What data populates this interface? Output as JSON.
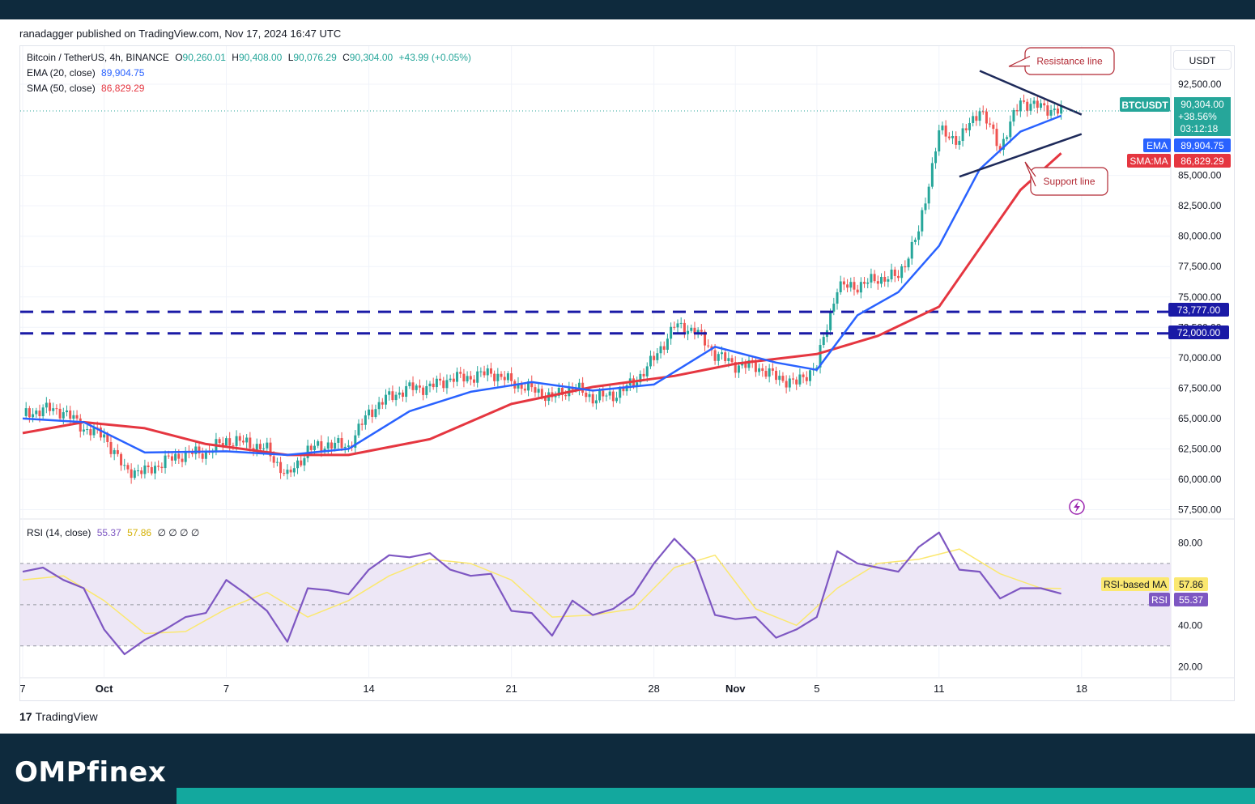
{
  "header": {
    "published": "ranadagger published on TradingView.com, Nov 17, 2024 16:47 UTC",
    "currency_button": "USDT",
    "tv_logo_text": "TradingView",
    "tv_logo_mark": "17"
  },
  "brand": "OMPfinex",
  "legend": {
    "symbol": "Bitcoin / TetherUS, 4h, BINANCE",
    "o_label": "O",
    "o": "90,260.01",
    "h_label": "H",
    "h": "90,408.00",
    "l_label": "L",
    "l": "90,076.29",
    "c_label": "C",
    "c": "90,304.00",
    "change": "+43.99 (+0.05%)",
    "ema_label": "EMA (20, close)",
    "ema_value": "89,904.75",
    "sma_label": "SMA (50, close)",
    "sma_value": "86,829.29",
    "rsi_label": "RSI (14, close)",
    "rsi_value": "55.37",
    "rsi_ma_value": "57.86",
    "rsi_extra": "∅ ∅ ∅ ∅"
  },
  "price_tags": {
    "symbol": "BTCUSDT",
    "price": "90,304.00",
    "pct": "+38.56%",
    "countdown": "03:12:18",
    "ema_tag": "EMA",
    "ema": "89,904.75",
    "sma_tag": "SMA:MA",
    "sma": "86,829.29",
    "level1": "73,777.00",
    "level2": "72,000.00",
    "rsi_ma_tag": "RSI-based MA",
    "rsi_ma": "57.86",
    "rsi_tag": "RSI",
    "rsi": "55.37"
  },
  "annotations": {
    "resistance": "Resistance line",
    "support": "Support line"
  },
  "colors": {
    "up": "#26a69a",
    "down": "#ef5350",
    "ema": "#2962ff",
    "sma": "#e53640",
    "rsi": "#7e57c2",
    "rsi_ma": "#fbe870",
    "level": "#1a1aa6",
    "trendline": "#1e2a5a",
    "annotation": "#b22833",
    "rsi_band": "#ede7f6",
    "brand_bar": "#0e2a3d",
    "teal": "#13a89e"
  },
  "chart_data": [
    {
      "type": "candlestick",
      "title": "Bitcoin / TetherUS, 4h, BINANCE",
      "ylabel": "USDT",
      "y_ticks": [
        57500,
        60000,
        62500,
        65000,
        67500,
        70000,
        72500,
        75000,
        77500,
        80000,
        82500,
        85000,
        92500
      ],
      "y_tick_labels": [
        "57,500.00",
        "60,000.00",
        "62,500.00",
        "65,000.00",
        "67,500.00",
        "70,000.00",
        "72,500.00",
        "75,000.00",
        "77,500.00",
        "80,000.00",
        "82,500.00",
        "85,000.00",
        "92,500.00"
      ],
      "ylim": [
        56800,
        95300
      ],
      "x_ticks": [
        "7",
        "Oct",
        "7",
        "14",
        "21",
        "28",
        "Nov",
        "5",
        "11",
        "18"
      ],
      "x_tick_dates": [
        "2024-09-27",
        "2024-10-01",
        "2024-10-07",
        "2024-10-14",
        "2024-10-21",
        "2024-10-28",
        "2024-11-01",
        "2024-11-05",
        "2024-11-11",
        "2024-11-18"
      ],
      "x_range": [
        "2024-09-27",
        "2024-11-22"
      ],
      "close_path": [
        [
          "2024-09-27",
          65200
        ],
        [
          "2024-09-28",
          65800
        ],
        [
          "2024-09-29",
          65600
        ],
        [
          "2024-09-30",
          64200
        ],
        [
          "2024-10-01",
          63600
        ],
        [
          "2024-10-02",
          60800
        ],
        [
          "2024-10-03",
          60600
        ],
        [
          "2024-10-04",
          61500
        ],
        [
          "2024-10-05",
          62100
        ],
        [
          "2024-10-06",
          62200
        ],
        [
          "2024-10-07",
          63200
        ],
        [
          "2024-10-08",
          63000
        ],
        [
          "2024-10-09",
          62400
        ],
        [
          "2024-10-10",
          60200
        ],
        [
          "2024-10-11",
          62400
        ],
        [
          "2024-10-12",
          62900
        ],
        [
          "2024-10-13",
          62700
        ],
        [
          "2024-10-14",
          65500
        ],
        [
          "2024-10-15",
          66800
        ],
        [
          "2024-10-16",
          67500
        ],
        [
          "2024-10-17",
          67600
        ],
        [
          "2024-10-18",
          68300
        ],
        [
          "2024-10-19",
          68400
        ],
        [
          "2024-10-20",
          68800
        ],
        [
          "2024-10-21",
          68000
        ],
        [
          "2024-10-22",
          67400
        ],
        [
          "2024-10-23",
          66700
        ],
        [
          "2024-10-24",
          67600
        ],
        [
          "2024-10-25",
          66700
        ],
        [
          "2024-10-26",
          66900
        ],
        [
          "2024-10-27",
          67900
        ],
        [
          "2024-10-28",
          69900
        ],
        [
          "2024-10-29",
          72600
        ],
        [
          "2024-10-30",
          72300
        ],
        [
          "2024-10-31",
          70300
        ],
        [
          "2024-11-01",
          69400
        ],
        [
          "2024-11-02",
          69300
        ],
        [
          "2024-11-03",
          68400
        ],
        [
          "2024-11-04",
          67900
        ],
        [
          "2024-11-05",
          69400
        ],
        [
          "2024-11-06",
          75800
        ],
        [
          "2024-11-07",
          75900
        ],
        [
          "2024-11-08",
          76500
        ],
        [
          "2024-11-09",
          76700
        ],
        [
          "2024-11-10",
          80300
        ],
        [
          "2024-11-11",
          88600
        ],
        [
          "2024-11-12",
          87900
        ],
        [
          "2024-11-13",
          90500
        ],
        [
          "2024-11-14",
          87300
        ],
        [
          "2024-11-15",
          91100
        ],
        [
          "2024-11-16",
          90600
        ],
        [
          "2024-11-17",
          90304
        ]
      ],
      "series": [
        {
          "name": "EMA (20, close)",
          "last": 89904.75,
          "points": [
            [
              "2024-09-27",
              65000
            ],
            [
              "2024-09-30",
              64700
            ],
            [
              "2024-10-03",
              62200
            ],
            [
              "2024-10-07",
              62300
            ],
            [
              "2024-10-10",
              62000
            ],
            [
              "2024-10-13",
              62500
            ],
            [
              "2024-10-16",
              65600
            ],
            [
              "2024-10-19",
              67200
            ],
            [
              "2024-10-22",
              68000
            ],
            [
              "2024-10-25",
              67300
            ],
            [
              "2024-10-28",
              67800
            ],
            [
              "2024-10-31",
              70900
            ],
            [
              "2024-11-03",
              69600
            ],
            [
              "2024-11-05",
              69000
            ],
            [
              "2024-11-07",
              73500
            ],
            [
              "2024-11-09",
              75400
            ],
            [
              "2024-11-11",
              79200
            ],
            [
              "2024-11-13",
              85500
            ],
            [
              "2024-11-15",
              88600
            ],
            [
              "2024-11-17",
              89904.75
            ]
          ]
        },
        {
          "name": "SMA (50, close)",
          "last": 86829.29,
          "points": [
            [
              "2024-09-27",
              63800
            ],
            [
              "2024-09-30",
              64700
            ],
            [
              "2024-10-03",
              64200
            ],
            [
              "2024-10-06",
              62900
            ],
            [
              "2024-10-10",
              62000
            ],
            [
              "2024-10-13",
              62000
            ],
            [
              "2024-10-17",
              63300
            ],
            [
              "2024-10-21",
              66200
            ],
            [
              "2024-10-25",
              67600
            ],
            [
              "2024-10-29",
              68500
            ],
            [
              "2024-11-01",
              69500
            ],
            [
              "2024-11-05",
              70300
            ],
            [
              "2024-11-08",
              71800
            ],
            [
              "2024-11-11",
              74200
            ],
            [
              "2024-11-13",
              79000
            ],
            [
              "2024-11-15",
              83800
            ],
            [
              "2024-11-17",
              86829.29
            ]
          ]
        }
      ],
      "horizontal_levels": [
        73777,
        72000
      ],
      "trendlines": [
        {
          "name": "Resistance line",
          "points": [
            [
              "2024-11-13",
              93600
            ],
            [
              "2024-11-18",
              90000
            ]
          ]
        },
        {
          "name": "Support line",
          "points": [
            [
              "2024-11-12",
              84900
            ],
            [
              "2024-11-18",
              88400
            ]
          ]
        }
      ],
      "annotations": [
        "Resistance line",
        "Support line"
      ],
      "grid": true
    },
    {
      "type": "line",
      "title": "RSI (14, close)",
      "y_ticks": [
        20,
        40,
        80
      ],
      "y_tick_labels": [
        "20.00",
        "40.00",
        "80.00"
      ],
      "ylim": [
        15,
        90
      ],
      "band": [
        30,
        70
      ],
      "midline": 50,
      "series": [
        {
          "name": "RSI",
          "last": 55.37,
          "points": [
            [
              "2024-09-27",
              66
            ],
            [
              "2024-09-28",
              68
            ],
            [
              "2024-09-29",
              62
            ],
            [
              "2024-09-30",
              58
            ],
            [
              "2024-10-01",
              38
            ],
            [
              "2024-10-02",
              26
            ],
            [
              "2024-10-03",
              33
            ],
            [
              "2024-10-04",
              38
            ],
            [
              "2024-10-05",
              44
            ],
            [
              "2024-10-06",
              46
            ],
            [
              "2024-10-07",
              62
            ],
            [
              "2024-10-08",
              55
            ],
            [
              "2024-10-09",
              47
            ],
            [
              "2024-10-10",
              32
            ],
            [
              "2024-10-11",
              58
            ],
            [
              "2024-10-12",
              57
            ],
            [
              "2024-10-13",
              55
            ],
            [
              "2024-10-14",
              67
            ],
            [
              "2024-10-15",
              74
            ],
            [
              "2024-10-16",
              73
            ],
            [
              "2024-10-17",
              75
            ],
            [
              "2024-10-18",
              67
            ],
            [
              "2024-10-19",
              64
            ],
            [
              "2024-10-20",
              65
            ],
            [
              "2024-10-21",
              47
            ],
            [
              "2024-10-22",
              46
            ],
            [
              "2024-10-23",
              35
            ],
            [
              "2024-10-24",
              52
            ],
            [
              "2024-10-25",
              45
            ],
            [
              "2024-10-26",
              48
            ],
            [
              "2024-10-27",
              55
            ],
            [
              "2024-10-28",
              70
            ],
            [
              "2024-10-29",
              82
            ],
            [
              "2024-10-30",
              72
            ],
            [
              "2024-10-31",
              45
            ],
            [
              "2024-11-01",
              43
            ],
            [
              "2024-11-02",
              44
            ],
            [
              "2024-11-03",
              34
            ],
            [
              "2024-11-04",
              38
            ],
            [
              "2024-11-05",
              44
            ],
            [
              "2024-11-06",
              76
            ],
            [
              "2024-11-07",
              70
            ],
            [
              "2024-11-08",
              68
            ],
            [
              "2024-11-09",
              66
            ],
            [
              "2024-11-10",
              78
            ],
            [
              "2024-11-11",
              85
            ],
            [
              "2024-11-12",
              67
            ],
            [
              "2024-11-13",
              66
            ],
            [
              "2024-11-14",
              53
            ],
            [
              "2024-11-15",
              58
            ],
            [
              "2024-11-16",
              58
            ],
            [
              "2024-11-17",
              55.37
            ]
          ]
        },
        {
          "name": "RSI-based MA",
          "last": 57.86,
          "points": [
            [
              "2024-09-27",
              62
            ],
            [
              "2024-09-29",
              64
            ],
            [
              "2024-10-01",
              52
            ],
            [
              "2024-10-03",
              36
            ],
            [
              "2024-10-05",
              37
            ],
            [
              "2024-10-07",
              48
            ],
            [
              "2024-10-09",
              56
            ],
            [
              "2024-10-11",
              44
            ],
            [
              "2024-10-13",
              52
            ],
            [
              "2024-10-15",
              64
            ],
            [
              "2024-10-17",
              72
            ],
            [
              "2024-10-19",
              70
            ],
            [
              "2024-10-21",
              62
            ],
            [
              "2024-10-23",
              44
            ],
            [
              "2024-10-25",
              45
            ],
            [
              "2024-10-27",
              48
            ],
            [
              "2024-10-29",
              68
            ],
            [
              "2024-10-31",
              74
            ],
            [
              "2024-11-02",
              48
            ],
            [
              "2024-11-04",
              40
            ],
            [
              "2024-11-06",
              58
            ],
            [
              "2024-11-08",
              70
            ],
            [
              "2024-11-10",
              72
            ],
            [
              "2024-11-12",
              77
            ],
            [
              "2024-11-14",
              65
            ],
            [
              "2024-11-16",
              58
            ],
            [
              "2024-11-17",
              57.86
            ]
          ]
        }
      ]
    }
  ]
}
